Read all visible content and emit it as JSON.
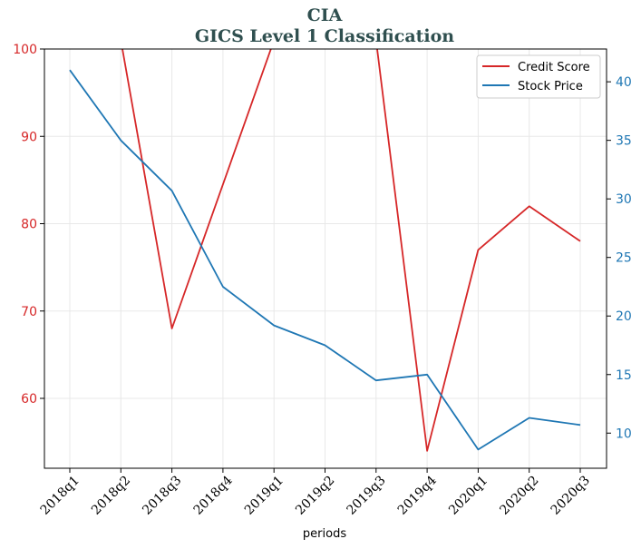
{
  "chart_data": {
    "type": "line",
    "title": "CIA",
    "subtitle": "GICS Level 1 Classification",
    "xlabel": "periods",
    "categories": [
      "2018q1",
      "2018q2",
      "2018q3",
      "2018q4",
      "2019q1",
      "2019q2",
      "2019q3",
      "2019q4",
      "2020q1",
      "2020q2",
      "2020q3"
    ],
    "series": [
      {
        "name": "Credit Score",
        "axis": "left",
        "color": "#d62728",
        "values": [
          null,
          101,
          68,
          null,
          101,
          null,
          101,
          54,
          77,
          82,
          78
        ]
      },
      {
        "name": "Stock Price",
        "axis": "right",
        "color": "#1f77b4",
        "values": [
          41.0,
          35.0,
          30.7,
          22.5,
          19.2,
          17.5,
          14.5,
          15.0,
          8.6,
          11.3,
          10.7
        ]
      }
    ],
    "ylim_left": [
      52,
      100
    ],
    "ylim_right": [
      7,
      42.8
    ],
    "yticks_left": [
      60,
      70,
      80,
      90,
      100
    ],
    "yticks_right": [
      10,
      15,
      20,
      25,
      30,
      35,
      40
    ],
    "grid": true,
    "legend_position": "top-right"
  }
}
